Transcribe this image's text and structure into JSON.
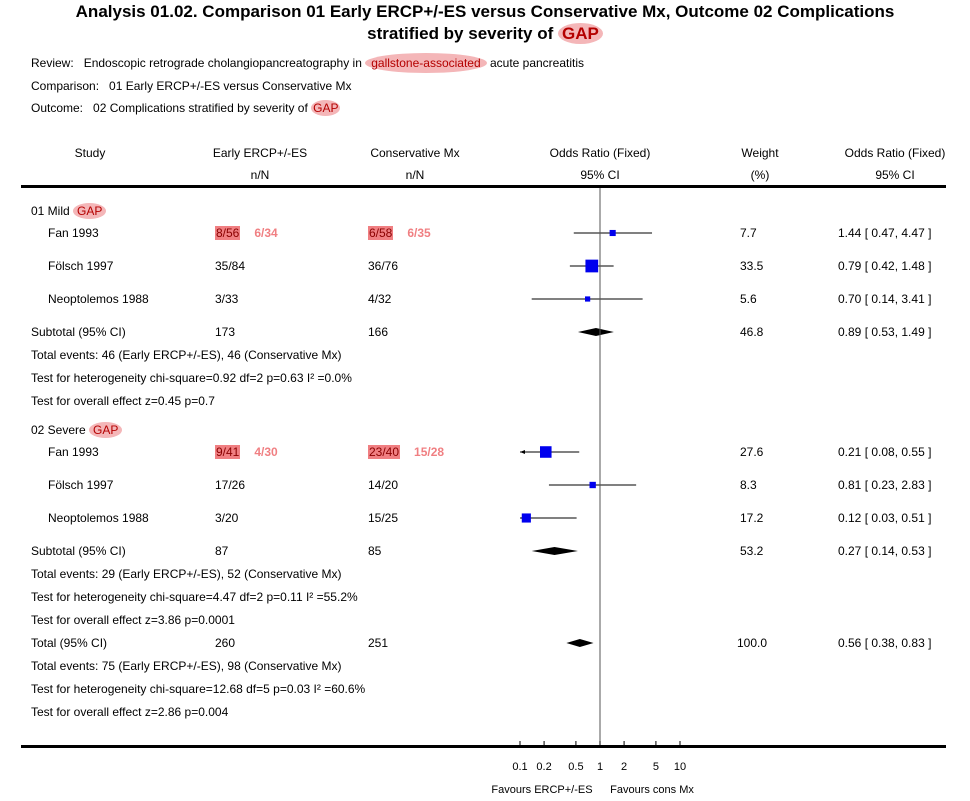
{
  "title": {
    "line1": "Analysis 01.02.    Comparison 01 Early ERCP+/-ES versus Conservative Mx, Outcome 02 Complications",
    "line2_prefix": "stratified by severity of ",
    "line2_highlight": "GAP"
  },
  "meta": {
    "review_label": "Review:",
    "review_prefix": "Endoscopic retrograde cholangiopancreatography in ",
    "review_highlight": "gallstone-associated",
    "review_suffix": " acute pancreatitis",
    "comparison_label": "Comparison:",
    "comparison_value": "01 Early ERCP+/-ES versus Conservative Mx",
    "outcome_label": "Outcome:",
    "outcome_prefix": "02 Complications stratified by severity of ",
    "outcome_highlight": "GAP"
  },
  "headers": {
    "study": "Study",
    "group1": "Early ERCP+/-ES",
    "group1_sub": "n/N",
    "group2": "Conservative Mx",
    "group2_sub": "n/N",
    "or_plot": "Odds Ratio (Fixed)",
    "or_plot_sub": "95% CI",
    "weight": "Weight",
    "weight_sub": "(%)",
    "or_text": "Odds Ratio (Fixed)",
    "or_text_sub": "95% CI"
  },
  "colors": {
    "study_marker": "#0000ee",
    "highlight_oval": "#f4b6b8",
    "highlight_text": "#b40000",
    "original_value_bg": "#f07f82",
    "corrected_value": "#f07f82"
  },
  "chart_data": {
    "type": "forest",
    "scale": "log",
    "xlim": [
      0.1,
      10
    ],
    "x_ticks": [
      "0.1",
      "0.2",
      "0.5",
      "1",
      "2",
      "5",
      "10"
    ],
    "x_tick_values": [
      0.1,
      0.2,
      0.5,
      1,
      2,
      5,
      10
    ],
    "reference_line": 1,
    "favours_left": "Favours ERCP+/-ES",
    "favours_right": "Favours cons Mx",
    "subgroups": [
      {
        "name_prefix": "01 Mild ",
        "name_highlight": "GAP",
        "studies": [
          {
            "study": "Fan 1993",
            "g1": "8/56",
            "g1_corrected": "6/34",
            "g2": "6/58",
            "g2_corrected": "6/35",
            "or": 1.44,
            "lo": 0.47,
            "hi": 4.47,
            "weight": "7.7",
            "ci_text": "1.44 [ 0.47, 4.47 ]",
            "annotated": true
          },
          {
            "study": "Fölsch 1997",
            "g1": "35/84",
            "g2": "36/76",
            "or": 0.79,
            "lo": 0.42,
            "hi": 1.48,
            "weight": "33.5",
            "ci_text": "0.79 [ 0.42, 1.48 ]"
          },
          {
            "study": "Neoptolemos 1988",
            "g1": "3/33",
            "g2": "4/32",
            "or": 0.7,
            "lo": 0.14,
            "hi": 3.41,
            "weight": "5.6",
            "ci_text": "0.70 [ 0.14, 3.41 ]"
          }
        ],
        "subtotal": {
          "label": "Subtotal (95% CI)",
          "g1": "173",
          "g2": "166",
          "or": 0.89,
          "lo": 0.53,
          "hi": 1.49,
          "weight": "46.8",
          "ci_text": "0.89 [ 0.53, 1.49 ]"
        },
        "notes": [
          "Total events: 46 (Early ERCP+/-ES), 46 (Conservative Mx)",
          "Test for heterogeneity chi-square=0.92 df=2 p=0.63 I² =0.0%",
          "Test for overall effect z=0.45    p=0.7"
        ]
      },
      {
        "name_prefix": "02 Severe ",
        "name_highlight": "GAP",
        "studies": [
          {
            "study": "Fan 1993",
            "g1": "9/41",
            "g1_corrected": "4/30",
            "g2": "23/40",
            "g2_corrected": "15/28",
            "or": 0.21,
            "lo": 0.08,
            "hi": 0.55,
            "weight": "27.6",
            "ci_text": "0.21 [ 0.08, 0.55 ]",
            "annotated": true
          },
          {
            "study": "Fölsch 1997",
            "g1": "17/26",
            "g2": "14/20",
            "or": 0.81,
            "lo": 0.23,
            "hi": 2.83,
            "weight": "8.3",
            "ci_text": "0.81 [ 0.23, 2.83 ]"
          },
          {
            "study": "Neoptolemos 1988",
            "g1": "3/20",
            "g2": "15/25",
            "or": 0.12,
            "lo": 0.03,
            "hi": 0.51,
            "weight": "17.2",
            "ci_text": "0.12 [ 0.03, 0.51 ]"
          }
        ],
        "subtotal": {
          "label": "Subtotal (95% CI)",
          "g1": "87",
          "g2": "85",
          "or": 0.27,
          "lo": 0.14,
          "hi": 0.53,
          "weight": "53.2",
          "ci_text": "0.27 [ 0.14, 0.53 ]"
        },
        "notes": [
          "Total events: 29 (Early ERCP+/-ES), 52 (Conservative Mx)",
          "Test for heterogeneity chi-square=4.47 df=2 p=0.11 I² =55.2%",
          "Test for overall effect z=3.86    p=0.0001"
        ]
      }
    ],
    "total": {
      "label": "Total (95% CI)",
      "g1": "260",
      "g2": "251",
      "or": 0.56,
      "lo": 0.38,
      "hi": 0.83,
      "weight": "100.0",
      "ci_text": "0.56 [ 0.38, 0.83 ]"
    },
    "total_notes": [
      "Total events: 75 (Early ERCP+/-ES), 98 (Conservative Mx)",
      "Test for heterogeneity chi-square=12.68 df=5 p=0.03 I² =60.6%",
      "Test for overall effect z=2.86    p=0.004"
    ]
  }
}
